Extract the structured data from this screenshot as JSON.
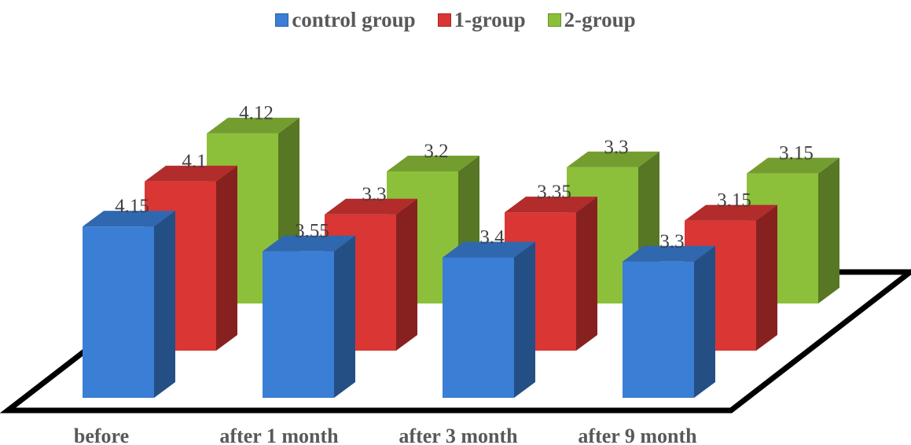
{
  "chart_data": {
    "type": "bar",
    "categories": [
      "before",
      "after 1 month",
      "after 3 month",
      "after 9 month"
    ],
    "series": [
      {
        "name": "control group",
        "values": [
          4.15,
          3.55,
          3.4,
          3.3
        ],
        "color": "#3A7FD5"
      },
      {
        "name": "1-group",
        "values": [
          4.1,
          3.3,
          3.35,
          3.15
        ],
        "color": "#D93634"
      },
      {
        "name": "2-group",
        "values": [
          4.12,
          3.2,
          3.3,
          3.15
        ],
        "color": "#8DC03A"
      }
    ],
    "title": "",
    "xlabel": "",
    "ylabel": "",
    "legend": "top",
    "grid": false
  }
}
